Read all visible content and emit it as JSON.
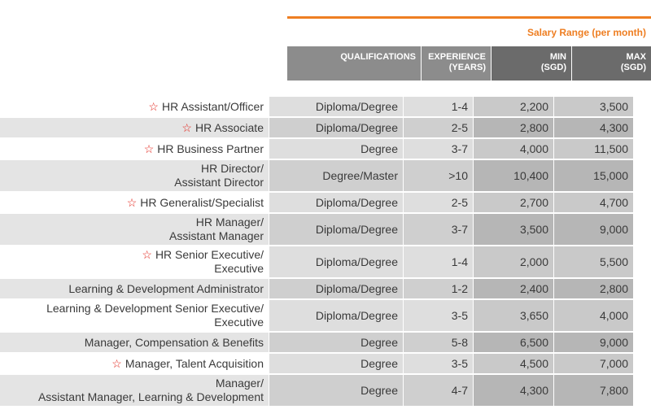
{
  "header": {
    "salary_range": "Salary Range (per month)",
    "qualifications": "QUALIFICATIONS",
    "experience_l1": "EXPERIENCE",
    "experience_l2": "(YEARS)",
    "min_l1": "MIN",
    "min_l2": "(SGD)",
    "max_l1": "MAX",
    "max_l2": "(SGD)"
  },
  "colors": {
    "accent": "#ee7e22",
    "star": "#e2231a"
  },
  "star_icon": "☆",
  "rows": [
    {
      "star": true,
      "title": [
        "HR Assistant/Officer"
      ],
      "qualification": "Diploma/Degree",
      "experience": "1-4",
      "min": "2,200",
      "max": "3,500"
    },
    {
      "star": true,
      "title": [
        "HR Associate"
      ],
      "qualification": "Diploma/Degree",
      "experience": "2-5",
      "min": "2,800",
      "max": "4,300"
    },
    {
      "star": true,
      "title": [
        "HR Business Partner"
      ],
      "qualification": "Degree",
      "experience": "3-7",
      "min": "4,000",
      "max": "11,500"
    },
    {
      "star": false,
      "title": [
        "HR Director/",
        "Assistant Director"
      ],
      "qualification": "Degree/Master",
      "experience": ">10",
      "min": "10,400",
      "max": "15,000"
    },
    {
      "star": true,
      "title": [
        "HR Generalist/Specialist"
      ],
      "qualification": "Diploma/Degree",
      "experience": "2-5",
      "min": "2,700",
      "max": "4,700"
    },
    {
      "star": false,
      "title": [
        "HR Manager/",
        "Assistant Manager"
      ],
      "qualification": "Diploma/Degree",
      "experience": "3-7",
      "min": "3,500",
      "max": "9,000"
    },
    {
      "star": true,
      "title": [
        "HR Senior Executive/",
        "Executive"
      ],
      "qualification": "Diploma/Degree",
      "experience": "1-4",
      "min": "2,000",
      "max": "5,500"
    },
    {
      "star": false,
      "title": [
        "Learning & Development Administrator"
      ],
      "qualification": "Diploma/Degree",
      "experience": "1-2",
      "min": "2,400",
      "max": "2,800"
    },
    {
      "star": false,
      "title": [
        "Learning & Development Senior Executive/",
        "Executive"
      ],
      "qualification": "Diploma/Degree",
      "experience": "3-5",
      "min": "3,650",
      "max": "4,000"
    },
    {
      "star": false,
      "title": [
        "Manager, Compensation & Benefits"
      ],
      "qualification": "Degree",
      "experience": "5-8",
      "min": "6,500",
      "max": "9,000"
    },
    {
      "star": true,
      "title": [
        "Manager, Talent Acquisition"
      ],
      "qualification": "Degree",
      "experience": "3-5",
      "min": "4,500",
      "max": "7,000"
    },
    {
      "star": false,
      "title": [
        "Manager/",
        "Assistant Manager, Learning & Development"
      ],
      "qualification": "Degree",
      "experience": "4-7",
      "min": "4,300",
      "max": "7,800"
    }
  ]
}
